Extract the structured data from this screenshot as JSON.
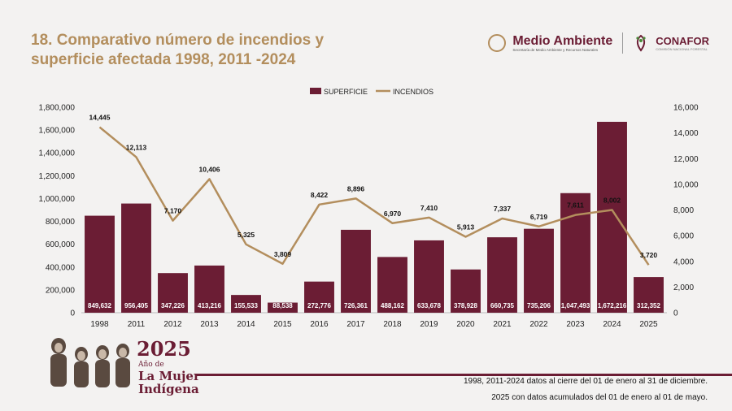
{
  "header": {
    "title_line1": "18. Comparativo número de incendios y",
    "title_line2": "superficie afectada 1998, 2011 -2024"
  },
  "logos": {
    "medio_ambiente": "Medio Ambiente",
    "medio_ambiente_sub": "Secretaría de Medio Ambiente y Recursos Naturales",
    "conafor": "CONAFOR",
    "conafor_sub": "COMISIÓN NACIONAL FORESTAL"
  },
  "badge": {
    "year": "2025",
    "line1": "Año de",
    "line2": "La Mujer",
    "line3": "Indígena"
  },
  "footer": {
    "note1": "1998, 2011-2024 datos al cierre del 01 de enero al 31 de diciembre.",
    "note2": "2025 con datos acumulados del 01 de enero al 01 de mayo."
  },
  "colors": {
    "bar": "#6b1d34",
    "line": "#b38e5d",
    "title": "#b38e5d"
  },
  "chart_data": {
    "type": "bar+line",
    "categories": [
      "1998",
      "2011",
      "2012",
      "2013",
      "2014",
      "2015",
      "2016",
      "2017",
      "2018",
      "2019",
      "2020",
      "2021",
      "2022",
      "2023",
      "2024",
      "2025"
    ],
    "series": [
      {
        "name": "SUPERFICIE",
        "type": "bar",
        "axis": "left",
        "values": [
          849632,
          956405,
          347226,
          413216,
          155533,
          88538,
          272776,
          726361,
          488162,
          633678,
          378928,
          660735,
          735206,
          1047493,
          1672216,
          312352
        ],
        "labels": [
          "849,632",
          "956,405",
          "347,226",
          "413,216",
          "155,533",
          "88,538",
          "272,776",
          "726,361",
          "488,162",
          "633,678",
          "378,928",
          "660,735",
          "735,206",
          "1,047,493",
          "1,672,216",
          "312,352"
        ]
      },
      {
        "name": "INCENDIOS",
        "type": "line",
        "axis": "right",
        "values": [
          14445,
          12113,
          7170,
          10406,
          5325,
          3809,
          8422,
          8896,
          6970,
          7410,
          5913,
          7337,
          6719,
          7611,
          8002,
          3720
        ],
        "labels": [
          "14,445",
          "12,113",
          "7,170",
          "10,406",
          "5,325",
          "3,809",
          "8,422",
          "8,896",
          "6,970",
          "7,410",
          "5,913",
          "7,337",
          "6,719",
          "7,611",
          "8,002",
          "3,720"
        ]
      }
    ],
    "y_left": {
      "range": [
        0,
        1800000
      ],
      "ticks": [
        "0",
        "200,000",
        "400,000",
        "600,000",
        "800,000",
        "1,000,000",
        "1,200,000",
        "1,400,000",
        "1,600,000",
        "1,800,000"
      ]
    },
    "y_right": {
      "range": [
        0,
        16000
      ],
      "ticks": [
        "0",
        "2,000",
        "4,000",
        "6,000",
        "8,000",
        "10,000",
        "12,000",
        "14,000",
        "16,000"
      ]
    },
    "legend": [
      "SUPERFICIE",
      "INCENDIOS"
    ],
    "legend_position": "top-center",
    "grid": false
  }
}
